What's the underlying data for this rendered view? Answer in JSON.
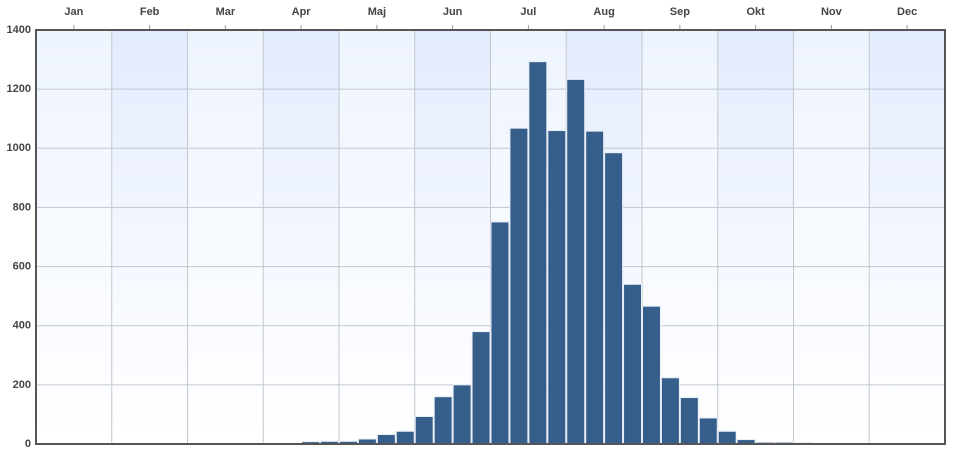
{
  "chart_data": {
    "type": "histogram",
    "bins": [
      0,
      0.25,
      0.5,
      0.75,
      1,
      1.25,
      1.5,
      1.75,
      2,
      2.25,
      2.5,
      2.75,
      3,
      3.25,
      3.5,
      3.75,
      4,
      4.25,
      4.5,
      4.75,
      5,
      5.25,
      5.5,
      5.75,
      6,
      6.25,
      6.5,
      6.75,
      7,
      7.25,
      7.5,
      7.75,
      8,
      8.25,
      8.5,
      8.75,
      9,
      9.25,
      9.5,
      9.75,
      10,
      10.25,
      10.5,
      10.75,
      11,
      11.25,
      11.5,
      11.75,
      12
    ],
    "values": [
      0,
      0,
      0,
      0,
      0,
      0,
      0,
      1,
      0,
      1,
      0,
      0,
      0,
      2,
      8,
      9,
      9,
      17,
      32,
      43,
      93,
      160,
      200,
      380,
      751,
      1068,
      1293,
      1060,
      1233,
      1058,
      985,
      540,
      466,
      224,
      157,
      88,
      43,
      15,
      6,
      6,
      5,
      2,
      0,
      0,
      0,
      0,
      0,
      0
    ],
    "color": "#2f5986",
    "xlim": [
      0,
      12
    ],
    "xticks": [
      {
        "value": 0.5,
        "label": "Jan"
      },
      {
        "value": 1.5,
        "label": "Feb"
      },
      {
        "value": 2.5,
        "label": "Mar"
      },
      {
        "value": 3.5,
        "label": "Apr"
      },
      {
        "value": 4.5,
        "label": "Maj"
      },
      {
        "value": 5.5,
        "label": "Jun"
      },
      {
        "value": 6.5,
        "label": "Jul"
      },
      {
        "value": 7.5,
        "label": "Aug"
      },
      {
        "value": 8.5,
        "label": "Sep"
      },
      {
        "value": 9.5,
        "label": "Okt"
      },
      {
        "value": 10.5,
        "label": "Nov"
      },
      {
        "value": 11.5,
        "label": "Dec"
      }
    ],
    "ylim": [
      0,
      1400
    ],
    "yticks": [
      0,
      200,
      400,
      600,
      800,
      1000,
      1200,
      1400
    ],
    "grid": true
  }
}
